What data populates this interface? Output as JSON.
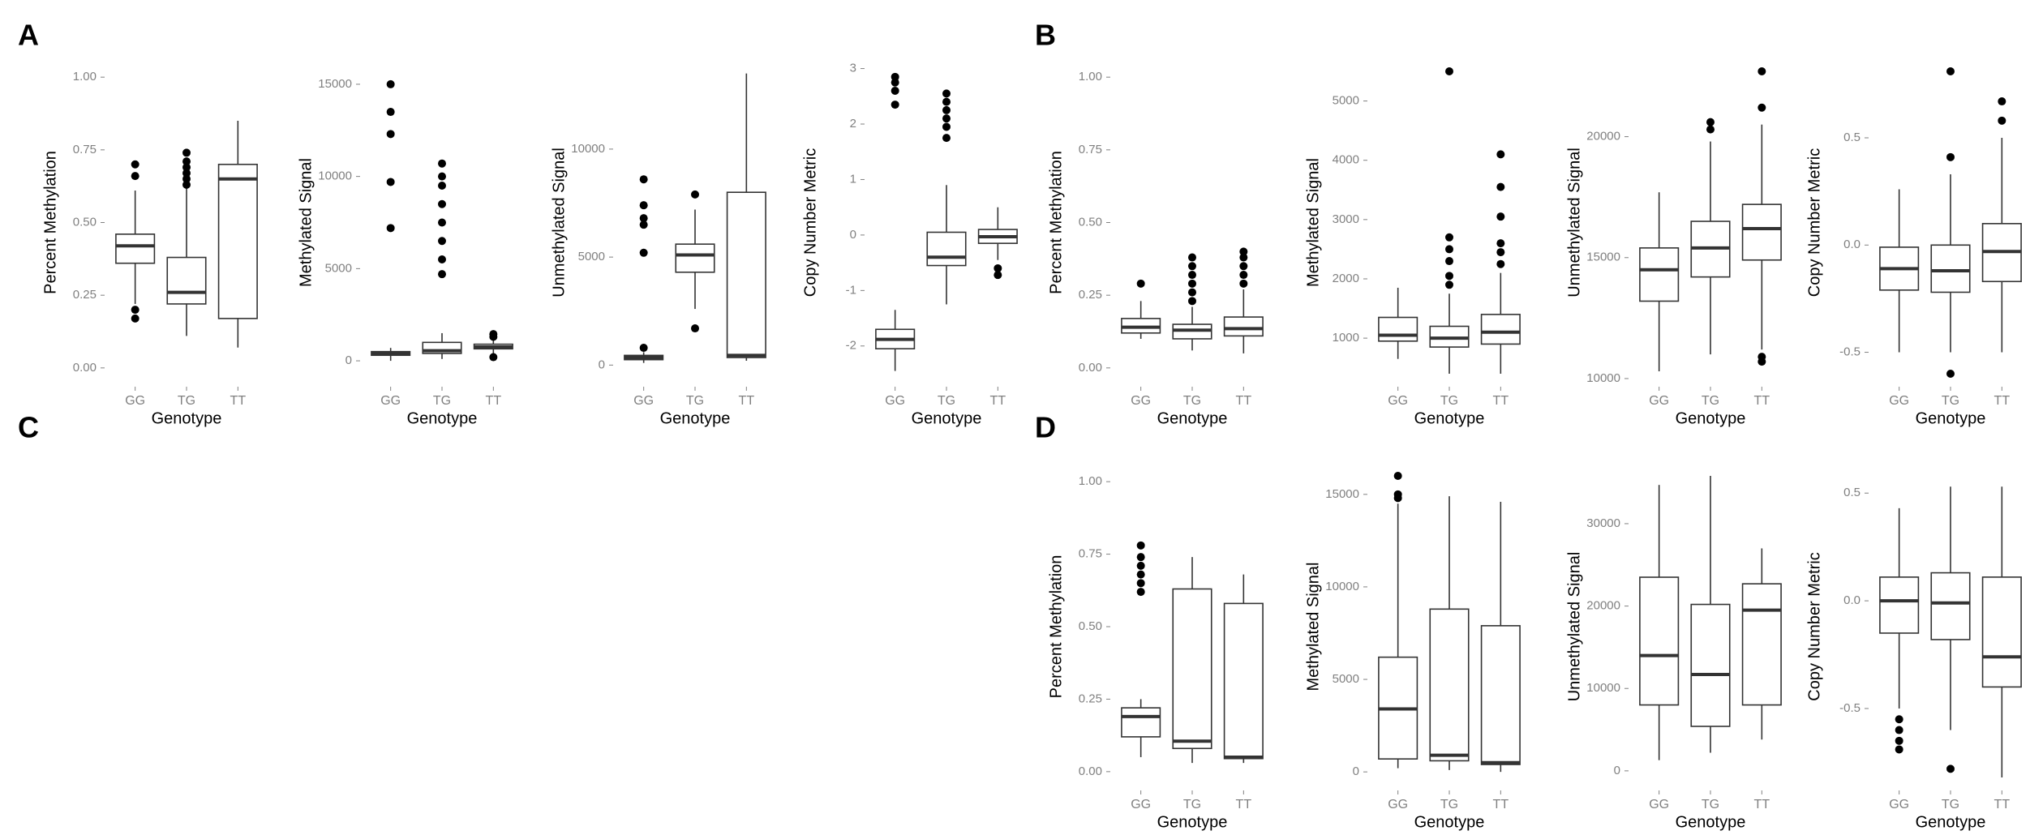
{
  "panel_labels": [
    "A",
    "B",
    "C",
    "D"
  ],
  "chart_data": [
    {
      "type": "box",
      "y_label": "Percent Methylation",
      "x_label": "Genotype",
      "categories": [
        "GG",
        "TG",
        "TT"
      ],
      "ylim": [
        -0.02,
        1.02
      ],
      "yticks": [
        {
          "value": 0,
          "label": "0.00"
        },
        {
          "value": 0.25,
          "label": "0.25"
        },
        {
          "value": 0.5,
          "label": "0.50"
        },
        {
          "value": 0.75,
          "label": "0.75"
        },
        {
          "value": 1,
          "label": "1.00"
        }
      ],
      "boxes": [
        {
          "low": 0.22,
          "q1": 0.36,
          "median": 0.42,
          "q3": 0.46,
          "high": 0.61,
          "outliers": [
            0.17,
            0.2,
            0.66,
            0.7
          ]
        },
        {
          "low": 0.11,
          "q1": 0.22,
          "median": 0.26,
          "q3": 0.38,
          "high": 0.62,
          "outliers": [
            0.63,
            0.65,
            0.67,
            0.69,
            0.71,
            0.74
          ]
        },
        {
          "low": 0.07,
          "q1": 0.17,
          "median": 0.65,
          "q3": 0.7,
          "high": 0.85,
          "outliers": []
        }
      ]
    },
    {
      "type": "box",
      "y_label": "Methylated Signal",
      "x_label": "Genotype",
      "categories": [
        "GG",
        "TG",
        "TT"
      ],
      "ylim": [
        -700,
        15700
      ],
      "yticks": [
        0,
        5000,
        10000,
        15000
      ],
      "boxes": [
        {
          "low": 0,
          "q1": 300,
          "median": 400,
          "q3": 500,
          "high": 700,
          "outliers": [
            7200,
            9700,
            12300,
            13500,
            15000
          ]
        },
        {
          "low": 100,
          "q1": 400,
          "median": 550,
          "q3": 1000,
          "high": 1500,
          "outliers": [
            4700,
            5500,
            6500,
            7500,
            8500,
            9500,
            10000,
            10700
          ]
        },
        {
          "low": 400,
          "q1": 650,
          "median": 750,
          "q3": 900,
          "high": 1100,
          "outliers": [
            200,
            1300,
            1450
          ]
        }
      ]
    },
    {
      "type": "box",
      "y_label": "Unmethylated Signal",
      "x_label": "Genotype",
      "categories": [
        "GG",
        "TG",
        "TT"
      ],
      "ylim": [
        -400,
        13600
      ],
      "yticks": [
        0,
        5000,
        10000
      ],
      "boxes": [
        {
          "low": 100,
          "q1": 250,
          "median": 350,
          "q3": 450,
          "high": 600,
          "outliers": [
            800,
            5200,
            6500,
            6800,
            7400,
            8600
          ]
        },
        {
          "low": 2600,
          "q1": 4300,
          "median": 5100,
          "q3": 5600,
          "high": 7200,
          "outliers": [
            1700,
            7900
          ]
        },
        {
          "low": 200,
          "q1": 350,
          "median": 450,
          "q3": 8000,
          "high": 13500,
          "outliers": []
        }
      ]
    },
    {
      "type": "box",
      "y_label": "Copy Number Metric",
      "x_label": "Genotype",
      "categories": [
        "GG",
        "TG",
        "TT"
      ],
      "ylim": [
        -2.5,
        2.95
      ],
      "yticks": [
        -2,
        -1,
        0,
        1,
        2,
        3
      ],
      "boxes": [
        {
          "low": -2.45,
          "q1": -2.05,
          "median": -1.88,
          "q3": -1.7,
          "high": -1.35,
          "outliers": [
            2.35,
            2.6,
            2.75,
            2.85
          ]
        },
        {
          "low": -1.25,
          "q1": -0.55,
          "median": -0.4,
          "q3": 0.05,
          "high": 0.9,
          "outliers": [
            1.75,
            1.95,
            2.1,
            2.25,
            2.4,
            2.55
          ]
        },
        {
          "low": -0.45,
          "q1": -0.15,
          "median": -0.03,
          "q3": 0.1,
          "high": 0.5,
          "outliers": [
            -0.72,
            -0.6
          ]
        }
      ]
    },
    {
      "type": "box",
      "y_label": "Percent Methylation",
      "x_label": "Genotype",
      "categories": [
        "GG",
        "TG",
        "TT"
      ],
      "ylim": [
        -0.02,
        1.02
      ],
      "yticks": [
        {
          "value": 0,
          "label": "0.00"
        },
        {
          "value": 0.25,
          "label": "0.25"
        },
        {
          "value": 0.5,
          "label": "0.50"
        },
        {
          "value": 0.75,
          "label": "0.75"
        },
        {
          "value": 1,
          "label": "1.00"
        }
      ],
      "boxes": [
        {
          "low": 0.1,
          "q1": 0.12,
          "median": 0.14,
          "q3": 0.17,
          "high": 0.23,
          "outliers": [
            0.29
          ]
        },
        {
          "low": 0.06,
          "q1": 0.1,
          "median": 0.13,
          "q3": 0.15,
          "high": 0.21,
          "outliers": [
            0.23,
            0.26,
            0.29,
            0.32,
            0.35,
            0.38
          ]
        },
        {
          "low": 0.05,
          "q1": 0.11,
          "median": 0.135,
          "q3": 0.175,
          "high": 0.27,
          "outliers": [
            0.29,
            0.32,
            0.35,
            0.38,
            0.4
          ]
        }
      ]
    },
    {
      "type": "box",
      "y_label": "Methylated Signal",
      "x_label": "Genotype",
      "categories": [
        "GG",
        "TG",
        "TT"
      ],
      "ylim": [
        400,
        5500
      ],
      "yticks": [
        1000,
        2000,
        3000,
        4000,
        5000
      ],
      "boxes": [
        {
          "low": 650,
          "q1": 950,
          "median": 1050,
          "q3": 1350,
          "high": 1850,
          "outliers": []
        },
        {
          "low": 400,
          "q1": 850,
          "median": 1000,
          "q3": 1200,
          "high": 1750,
          "outliers": [
            1900,
            2050,
            2300,
            2500,
            2700,
            5500
          ]
        },
        {
          "low": 400,
          "q1": 900,
          "median": 1100,
          "q3": 1400,
          "high": 2100,
          "outliers": [
            2250,
            2450,
            2600,
            3050,
            3550,
            4100
          ]
        }
      ]
    },
    {
      "type": "box",
      "y_label": "Unmethylated Signal",
      "x_label": "Genotype",
      "categories": [
        "GG",
        "TG",
        "TT"
      ],
      "ylim": [
        10200,
        22700
      ],
      "yticks": [
        10000,
        15000,
        20000
      ],
      "boxes": [
        {
          "low": 10300,
          "q1": 13200,
          "median": 14500,
          "q3": 15400,
          "high": 17700,
          "outliers": []
        },
        {
          "low": 11000,
          "q1": 14200,
          "median": 15400,
          "q3": 16500,
          "high": 19800,
          "outliers": [
            20300,
            20600
          ]
        },
        {
          "low": 11200,
          "q1": 14900,
          "median": 16200,
          "q3": 17200,
          "high": 20500,
          "outliers": [
            10700,
            10900,
            21200,
            22700
          ]
        }
      ]
    },
    {
      "type": "box",
      "y_label": "Copy Number Metric",
      "x_label": "Genotype",
      "categories": [
        "GG",
        "TG",
        "TT"
      ],
      "ylim": [
        -0.6,
        0.81
      ],
      "yticks": [
        -0.5,
        {
          "value": 0,
          "label": "0.0"
        },
        0.5
      ],
      "boxes": [
        {
          "low": -0.5,
          "q1": -0.21,
          "median": -0.11,
          "q3": -0.01,
          "high": 0.26,
          "outliers": []
        },
        {
          "low": -0.5,
          "q1": -0.22,
          "median": -0.12,
          "q3": 0,
          "high": 0.33,
          "outliers": [
            -0.6,
            0.41,
            0.81
          ]
        },
        {
          "low": -0.5,
          "q1": -0.17,
          "median": -0.03,
          "q3": 0.1,
          "high": 0.5,
          "outliers": [
            0.58,
            0.67
          ]
        }
      ]
    },
    {
      "type": "box",
      "y_label": "Percent Methylation",
      "x_label": "Genotype",
      "categories": [
        "GG",
        "TG",
        "TT"
      ],
      "ylim": [
        -0.02,
        1.02
      ],
      "yticks": [
        {
          "value": 0,
          "label": "0.00"
        },
        {
          "value": 0.25,
          "label": "0.25"
        },
        {
          "value": 0.5,
          "label": "0.50"
        },
        {
          "value": 0.75,
          "label": "0.75"
        },
        {
          "value": 1,
          "label": "1.00"
        }
      ],
      "boxes": [
        {
          "low": 0.05,
          "q1": 0.12,
          "median": 0.19,
          "q3": 0.22,
          "high": 0.25,
          "outliers": [
            0.62,
            0.65,
            0.68,
            0.71,
            0.74,
            0.78
          ]
        },
        {
          "low": 0.03,
          "q1": 0.08,
          "median": 0.105,
          "q3": 0.63,
          "high": 0.74,
          "outliers": []
        },
        {
          "low": 0.03,
          "q1": 0.045,
          "median": 0.05,
          "q3": 0.58,
          "high": 0.68,
          "outliers": []
        }
      ]
    },
    {
      "type": "box",
      "y_label": "Methylated Signal",
      "x_label": "Genotype",
      "categories": [
        "GG",
        "TG",
        "TT"
      ],
      "ylim": [
        -300,
        16000
      ],
      "yticks": [
        0,
        5000,
        10000,
        15000
      ],
      "boxes": [
        {
          "low": 200,
          "q1": 700,
          "median": 3400,
          "q3": 6200,
          "high": 14500,
          "outliers": [
            14800,
            15000,
            16000
          ]
        },
        {
          "low": 100,
          "q1": 600,
          "median": 900,
          "q3": 8800,
          "high": 14900,
          "outliers": []
        },
        {
          "low": 0,
          "q1": 400,
          "median": 500,
          "q3": 7900,
          "high": 14600,
          "outliers": []
        }
      ]
    },
    {
      "type": "box",
      "y_label": "Unmethylated Signal",
      "x_label": "Genotype",
      "categories": [
        "GG",
        "TG",
        "TT"
      ],
      "ylim": [
        -800,
        35800
      ],
      "yticks": [
        0,
        10000,
        20000,
        30000
      ],
      "boxes": [
        {
          "low": 1300,
          "q1": 8000,
          "median": 14000,
          "q3": 23500,
          "high": 34700,
          "outliers": []
        },
        {
          "low": 2200,
          "q1": 5400,
          "median": 11700,
          "q3": 20200,
          "high": 35800,
          "outliers": []
        },
        {
          "low": 3800,
          "q1": 8000,
          "median": 19500,
          "q3": 22700,
          "high": 27000,
          "outliers": []
        }
      ]
    },
    {
      "type": "box",
      "y_label": "Copy Number Metric",
      "x_label": "Genotype",
      "categories": [
        "GG",
        "TG",
        "TT"
      ],
      "ylim": [
        -0.82,
        0.58
      ],
      "yticks": [
        -0.5,
        {
          "value": 0,
          "label": "0.0"
        },
        0.5
      ],
      "boxes": [
        {
          "low": -0.5,
          "q1": -0.15,
          "median": 0,
          "q3": 0.11,
          "high": 0.43,
          "outliers": [
            -0.69,
            -0.65,
            -0.6,
            -0.55
          ]
        },
        {
          "low": -0.6,
          "q1": -0.18,
          "median": -0.01,
          "q3": 0.13,
          "high": 0.53,
          "outliers": [
            -0.78
          ]
        },
        {
          "low": -0.82,
          "q1": -0.4,
          "median": -0.26,
          "q3": 0.11,
          "high": 0.53,
          "outliers": []
        }
      ]
    }
  ]
}
